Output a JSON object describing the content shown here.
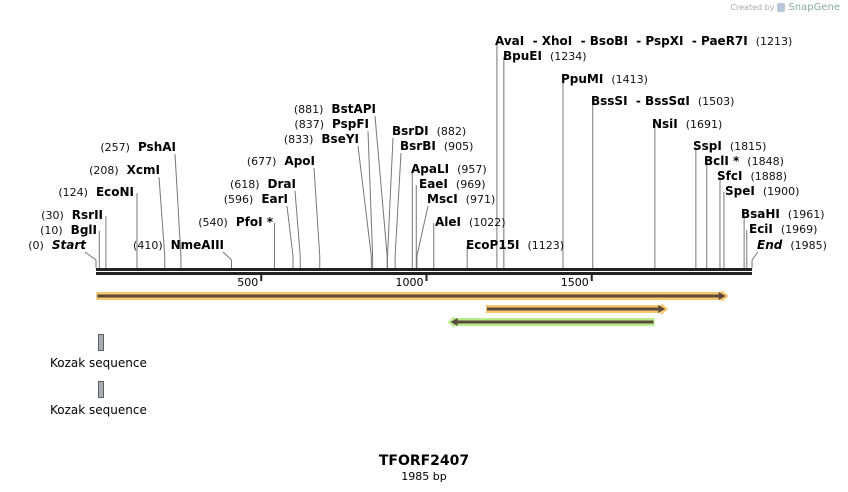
{
  "credit": {
    "prefix": "Created by",
    "brand": "SnapGene"
  },
  "sequence": {
    "name": "TFORF2407",
    "length_label": "1985 bp",
    "length": 1985
  },
  "ruler": {
    "ticks": [
      {
        "label": "500",
        "pos": 500
      },
      {
        "label": "1000",
        "pos": 1000
      },
      {
        "label": "1500",
        "pos": 1500
      }
    ]
  },
  "sites": [
    {
      "name": "Start",
      "pos_label": "(0)",
      "pos": 0
    },
    {
      "name": "BglI",
      "pos_label": "(10)",
      "pos": 10
    },
    {
      "name": "RsrII",
      "pos_label": "(30)",
      "pos": 30
    },
    {
      "name": "EcoNI",
      "pos_label": "(124)",
      "pos": 124
    },
    {
      "name": "XcmI",
      "pos_label": "(208)",
      "pos": 208
    },
    {
      "name": "PshAI",
      "pos_label": "(257)",
      "pos": 257
    },
    {
      "name": "NmeAIII",
      "pos_label": "(410)",
      "pos": 410
    },
    {
      "name": "PfoI *",
      "pos_label": "(540)",
      "pos": 540
    },
    {
      "name": "EarI",
      "pos_label": "(596)",
      "pos": 596
    },
    {
      "name": "DraI",
      "pos_label": "(618)",
      "pos": 618
    },
    {
      "name": "ApoI",
      "pos_label": "(677)",
      "pos": 677
    },
    {
      "name": "BseYI",
      "pos_label": "(833)",
      "pos": 833
    },
    {
      "name": "PspFI",
      "pos_label": "(837)",
      "pos": 837
    },
    {
      "name": "BstAPI",
      "pos_label": "(881)",
      "pos": 881
    },
    {
      "name": "BsrDI",
      "pos_label": "(882)",
      "pos": 882
    },
    {
      "name": "BsrBI",
      "pos_label": "(905)",
      "pos": 905
    },
    {
      "name": "ApaLI",
      "pos_label": "(957)",
      "pos": 957
    },
    {
      "name": "EaeI",
      "pos_label": "(969)",
      "pos": 969
    },
    {
      "name": "MscI",
      "pos_label": "(971)",
      "pos": 971
    },
    {
      "name": "AleI",
      "pos_label": "(1022)",
      "pos": 1022
    },
    {
      "name": "EcoP15I",
      "pos_label": "(1123)",
      "pos": 1123
    },
    {
      "name": "AvaI  - XhoI  - BsoBI  - PspXI  - PaeR7I",
      "pos_label": "(1213)",
      "pos": 1213
    },
    {
      "name": "BpuEI",
      "pos_label": "(1234)",
      "pos": 1234
    },
    {
      "name": "PpuMI",
      "pos_label": "(1413)",
      "pos": 1413
    },
    {
      "name": "BssSI  - BssSαI",
      "pos_label": "(1503)",
      "pos": 1503
    },
    {
      "name": "NsiI",
      "pos_label": "(1691)",
      "pos": 1691
    },
    {
      "name": "SspI",
      "pos_label": "(1815)",
      "pos": 1815
    },
    {
      "name": "BclI *",
      "pos_label": "(1848)",
      "pos": 1848
    },
    {
      "name": "SfcI",
      "pos_label": "(1888)",
      "pos": 1888
    },
    {
      "name": "SpeI",
      "pos_label": "(1900)",
      "pos": 1900
    },
    {
      "name": "BsaHI",
      "pos_label": "(1961)",
      "pos": 1961
    },
    {
      "name": "EciI",
      "pos_label": "(1969)",
      "pos": 1969
    },
    {
      "name": "End",
      "pos_label": "(1985)",
      "pos": 1985
    }
  ],
  "features": [
    {
      "type": "orf",
      "start": 1,
      "end": 1893,
      "direction": "forward",
      "color": "#f9c66d"
    },
    {
      "type": "orf",
      "start": 1180,
      "end": 1710,
      "direction": "forward",
      "color": "#f9c66d"
    },
    {
      "type": "orf",
      "start": 1085,
      "end": 1690,
      "direction": "reverse",
      "color": "#b9ec8e"
    }
  ],
  "kozak": [
    {
      "label": "Kozak sequence"
    },
    {
      "label": "Kozak sequence"
    }
  ],
  "colors": {
    "backbone": "#222222",
    "feature_core": "#5a4a3a",
    "line": "#777777"
  }
}
